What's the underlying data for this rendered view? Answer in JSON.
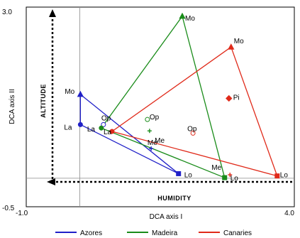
{
  "chart_data": {
    "type": "scatter",
    "xlabel": "DCA axis I",
    "ylabel": "DCA axis II",
    "xlim": [
      -1.0,
      4.0
    ],
    "ylim": [
      -0.5,
      3.0
    ],
    "x_tick_labels": [
      "-1.0",
      "4.0"
    ],
    "y_tick_labels": [
      "3.0",
      "-0.5"
    ],
    "reference_lines": {
      "x": 0,
      "y": 0
    },
    "annotations": {
      "vertical_arrow": "ALTITUDE",
      "horizontal_arrow": "HUMIDITY"
    },
    "legend_position": "bottom",
    "series": [
      {
        "name": "Azores",
        "color": "#2020c8",
        "hull": [
          "Mo",
          "La",
          "Lo"
        ],
        "points": [
          {
            "label": "Mo",
            "x": 0.01,
            "y": 1.47,
            "marker": "triangle",
            "filled": true
          },
          {
            "label": "La",
            "x": 0.01,
            "y": 0.94,
            "marker": "circle",
            "filled": true
          },
          {
            "label": "Op",
            "x": 0.44,
            "y": 0.94,
            "marker": "circle",
            "filled": false
          },
          {
            "label": "Me",
            "x": 1.33,
            "y": 0.52,
            "marker": "cross",
            "filled": true
          },
          {
            "label": "Lo",
            "x": 1.84,
            "y": 0.08,
            "marker": "square",
            "filled": true
          }
        ]
      },
      {
        "name": "Madeira",
        "color": "#1a8c1a",
        "hull": [
          "Mo",
          "La",
          "Lo"
        ],
        "points": [
          {
            "label": "Mo",
            "x": 1.91,
            "y": 2.84,
            "marker": "triangle",
            "filled": true
          },
          {
            "label": "La",
            "x": 0.4,
            "y": 0.88,
            "marker": "circle",
            "filled": true
          },
          {
            "label": "Op",
            "x": 1.26,
            "y": 1.03,
            "marker": "circle",
            "filled": false
          },
          {
            "label": "Me",
            "x": 1.3,
            "y": 0.83,
            "marker": "cross",
            "filled": true
          },
          {
            "label": "Lo",
            "x": 2.7,
            "y": 0.01,
            "marker": "square",
            "filled": true
          }
        ]
      },
      {
        "name": "Canaries",
        "color": "#e02a1a",
        "hull": [
          "Mo",
          "La",
          "Lo"
        ],
        "points": [
          {
            "label": "Mo",
            "x": 2.82,
            "y": 2.3,
            "marker": "triangle",
            "filled": true
          },
          {
            "label": "Pi",
            "x": 2.78,
            "y": 1.4,
            "marker": "diamond",
            "filled": true
          },
          {
            "label": "La",
            "x": 0.6,
            "y": 0.82,
            "marker": "circle",
            "filled": true
          },
          {
            "label": "Op",
            "x": 2.11,
            "y": 0.79,
            "marker": "circle",
            "filled": false
          },
          {
            "label": "Me",
            "x": 2.8,
            "y": 0.06,
            "marker": "cross",
            "filled": true
          },
          {
            "label": "Lo",
            "x": 3.68,
            "y": 0.04,
            "marker": "square",
            "filled": true
          }
        ]
      }
    ]
  }
}
